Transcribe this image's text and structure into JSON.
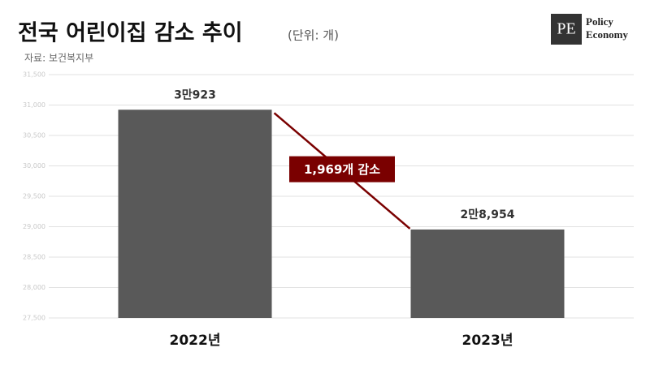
{
  "chart_data": {
    "type": "bar",
    "title": "전국 어린이집 감소 추이",
    "unit": "(단위: 개)",
    "source": "자료: 보건복지부",
    "brand": {
      "mark": "PE",
      "name_lines": [
        "Policy",
        "Economy"
      ]
    },
    "categories": [
      "2022년",
      "2023년"
    ],
    "values": [
      30923,
      28954
    ],
    "value_labels": [
      "3만923",
      "2만8,954"
    ],
    "color": "#595959",
    "annotation": "1,969개 감소",
    "annotation_color": "#7a0000",
    "ylim": [
      27500,
      31500
    ],
    "yticks": [
      {
        "value": 27500,
        "label": "27,500"
      },
      {
        "value": 28000,
        "label": "28,000"
      },
      {
        "value": 28500,
        "label": "28,500"
      },
      {
        "value": 29000,
        "label": "29,000"
      },
      {
        "value": 29500,
        "label": "29,500"
      },
      {
        "value": 30000,
        "label": "30,000"
      },
      {
        "value": 30500,
        "label": "30,500"
      },
      {
        "value": 31000,
        "label": "31,000"
      },
      {
        "value": 31500,
        "label": "31,500"
      }
    ],
    "grid": true
  }
}
